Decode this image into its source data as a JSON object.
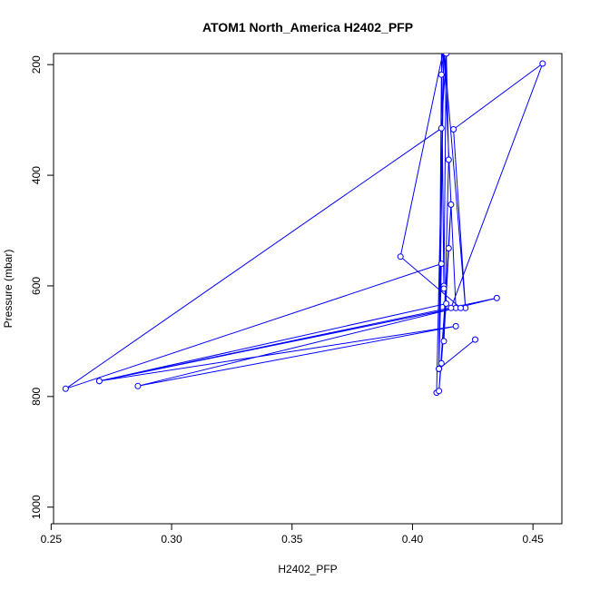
{
  "chart_data": {
    "type": "line",
    "title": "ATOM1 North_America H2402_PFP",
    "xlabel": "H2402_PFP",
    "ylabel": "Pressure (mbar)",
    "xlim": [
      0.251,
      0.462
    ],
    "ylim": [
      1030,
      180
    ],
    "y_reversed": true,
    "x_ticks": [
      0.25,
      0.3,
      0.35,
      0.4,
      0.45
    ],
    "x_tick_labels": [
      "0.25",
      "0.30",
      "0.35",
      "0.40",
      "0.45"
    ],
    "y_ticks": [
      200,
      400,
      600,
      800,
      1000
    ],
    "y_tick_labels": [
      "200",
      "400",
      "600",
      "800",
      "1000"
    ],
    "grid": false,
    "color": "#0000ff",
    "series": [
      {
        "markers": true,
        "line": true,
        "points": [
          {
            "x": 0.41,
            "y": 793
          },
          {
            "x": 0.413,
            "y": 170
          },
          {
            "x": 0.412,
            "y": 218
          },
          {
            "x": 0.411,
            "y": 750
          },
          {
            "x": 0.412,
            "y": 560
          },
          {
            "x": 0.256,
            "y": 786
          },
          {
            "x": 0.412,
            "y": 315
          },
          {
            "x": 0.414,
            "y": 180
          },
          {
            "x": 0.413,
            "y": 600
          },
          {
            "x": 0.412,
            "y": 170
          },
          {
            "x": 0.413,
            "y": 605
          },
          {
            "x": 0.414,
            "y": 170
          },
          {
            "x": 0.415,
            "y": 372
          },
          {
            "x": 0.413,
            "y": 700
          },
          {
            "x": 0.416,
            "y": 453
          },
          {
            "x": 0.412,
            "y": 740
          },
          {
            "x": 0.415,
            "y": 532
          },
          {
            "x": 0.411,
            "y": 790
          },
          {
            "x": 0.414,
            "y": 632
          },
          {
            "x": 0.27,
            "y": 772
          },
          {
            "x": 0.435,
            "y": 622
          },
          {
            "x": 0.286,
            "y": 781
          },
          {
            "x": 0.418,
            "y": 673
          },
          {
            "x": 0.27,
            "y": 772
          },
          {
            "x": 0.418,
            "y": 640
          },
          {
            "x": 0.413,
            "y": 170
          },
          {
            "x": 0.422,
            "y": 640
          },
          {
            "x": 0.417,
            "y": 317
          },
          {
            "x": 0.454,
            "y": 198
          },
          {
            "x": 0.416,
            "y": 640
          },
          {
            "x": 0.42,
            "y": 640
          },
          {
            "x": 0.395,
            "y": 547
          },
          {
            "x": 0.413,
            "y": 170
          },
          {
            "x": 0.411,
            "y": 750
          },
          {
            "x": 0.426,
            "y": 697
          }
        ]
      }
    ]
  }
}
